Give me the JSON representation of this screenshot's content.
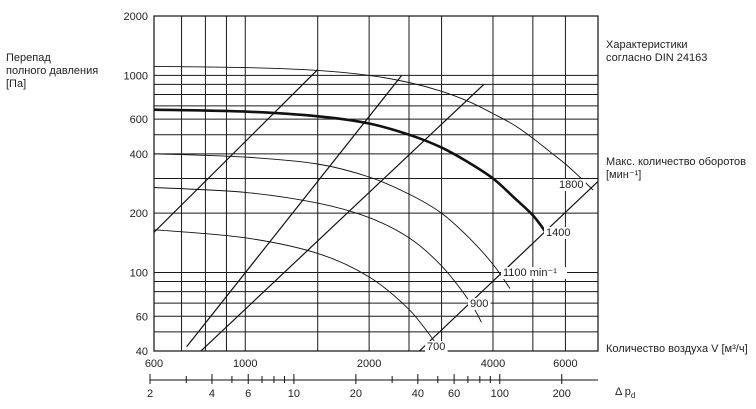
{
  "chart_data": {
    "type": "line",
    "scale": "log-log",
    "ylabel": "Перепад полного давления [Па]",
    "ylabel_lines": [
      "Перепад",
      "полного давления",
      "[Па]"
    ],
    "note_lines": [
      "Характеристики",
      "согласно DIN 24163"
    ],
    "speed_title_lines": [
      "Макс. количество оборотов",
      "[мин⁻¹]"
    ],
    "xlabel": "Количество воздуха V [м³/ч]",
    "dp_label": "Δ p",
    "dp_label_sub": "d",
    "xlim": [
      600,
      7200
    ],
    "ylim": [
      40,
      2000
    ],
    "x_ticks": [
      600,
      1000,
      2000,
      4000,
      6000
    ],
    "y_ticks": [
      40,
      60,
      100,
      200,
      400,
      600,
      1000,
      2000
    ],
    "x_grid": [
      700,
      800,
      900,
      1000,
      1500,
      2000,
      2500,
      3000,
      4000,
      5000,
      6000
    ],
    "y_grid": [
      40,
      50,
      60,
      70,
      80,
      90,
      100,
      200,
      300,
      400,
      500,
      600,
      700,
      800,
      900,
      1000,
      2000
    ],
    "dp_ticks": [
      2,
      4,
      6,
      10,
      20,
      40,
      60,
      100,
      200
    ],
    "dp_minor": [
      3,
      5,
      7,
      8,
      9,
      30,
      50,
      70,
      80,
      90
    ],
    "series": [
      {
        "label": "700",
        "bold": false,
        "points": [
          [
            600,
            165
          ],
          [
            1000,
            150
          ],
          [
            1500,
            125
          ],
          [
            2000,
            95
          ],
          [
            2500,
            65
          ],
          [
            2900,
            44
          ]
        ]
      },
      {
        "label": "900",
        "bold": false,
        "points": [
          [
            600,
            270
          ],
          [
            1000,
            255
          ],
          [
            1500,
            225
          ],
          [
            2000,
            190
          ],
          [
            2500,
            150
          ],
          [
            3000,
            108
          ],
          [
            3500,
            72
          ],
          [
            3750,
            56
          ]
        ]
      },
      {
        "label": "1100 min⁻¹",
        "bold": false,
        "points": [
          [
            600,
            400
          ],
          [
            1000,
            385
          ],
          [
            1500,
            355
          ],
          [
            2000,
            305
          ],
          [
            2500,
            250
          ],
          [
            3000,
            200
          ],
          [
            3500,
            150
          ],
          [
            4000,
            110
          ],
          [
            4400,
            83
          ]
        ]
      },
      {
        "label": "1400",
        "bold": true,
        "points": [
          [
            600,
            670
          ],
          [
            1000,
            655
          ],
          [
            1500,
            620
          ],
          [
            2000,
            570
          ],
          [
            2500,
            500
          ],
          [
            3000,
            430
          ],
          [
            3500,
            360
          ],
          [
            4000,
            300
          ],
          [
            4500,
            240
          ],
          [
            5000,
            195
          ],
          [
            5400,
            158
          ]
        ]
      },
      {
        "label": "1800",
        "bold": false,
        "points": [
          [
            600,
            1110
          ],
          [
            1000,
            1095
          ],
          [
            1500,
            1060
          ],
          [
            2000,
            1000
          ],
          [
            2500,
            920
          ],
          [
            3000,
            830
          ],
          [
            3500,
            735
          ],
          [
            4000,
            640
          ],
          [
            4500,
            560
          ],
          [
            5000,
            480
          ],
          [
            5500,
            410
          ],
          [
            6000,
            355
          ],
          [
            6500,
            305
          ],
          [
            7000,
            262
          ]
        ]
      }
    ],
    "system_lines": [
      {
        "points": [
          [
            600,
            160
          ],
          [
            1500,
            1070
          ]
        ]
      },
      {
        "points": [
          [
            720,
            42
          ],
          [
            2400,
            1000
          ]
        ]
      },
      {
        "points": [
          [
            780,
            40
          ],
          [
            3800,
            900
          ]
        ]
      },
      {
        "points": [
          [
            2650,
            40
          ],
          [
            7200,
            290
          ]
        ]
      }
    ]
  }
}
